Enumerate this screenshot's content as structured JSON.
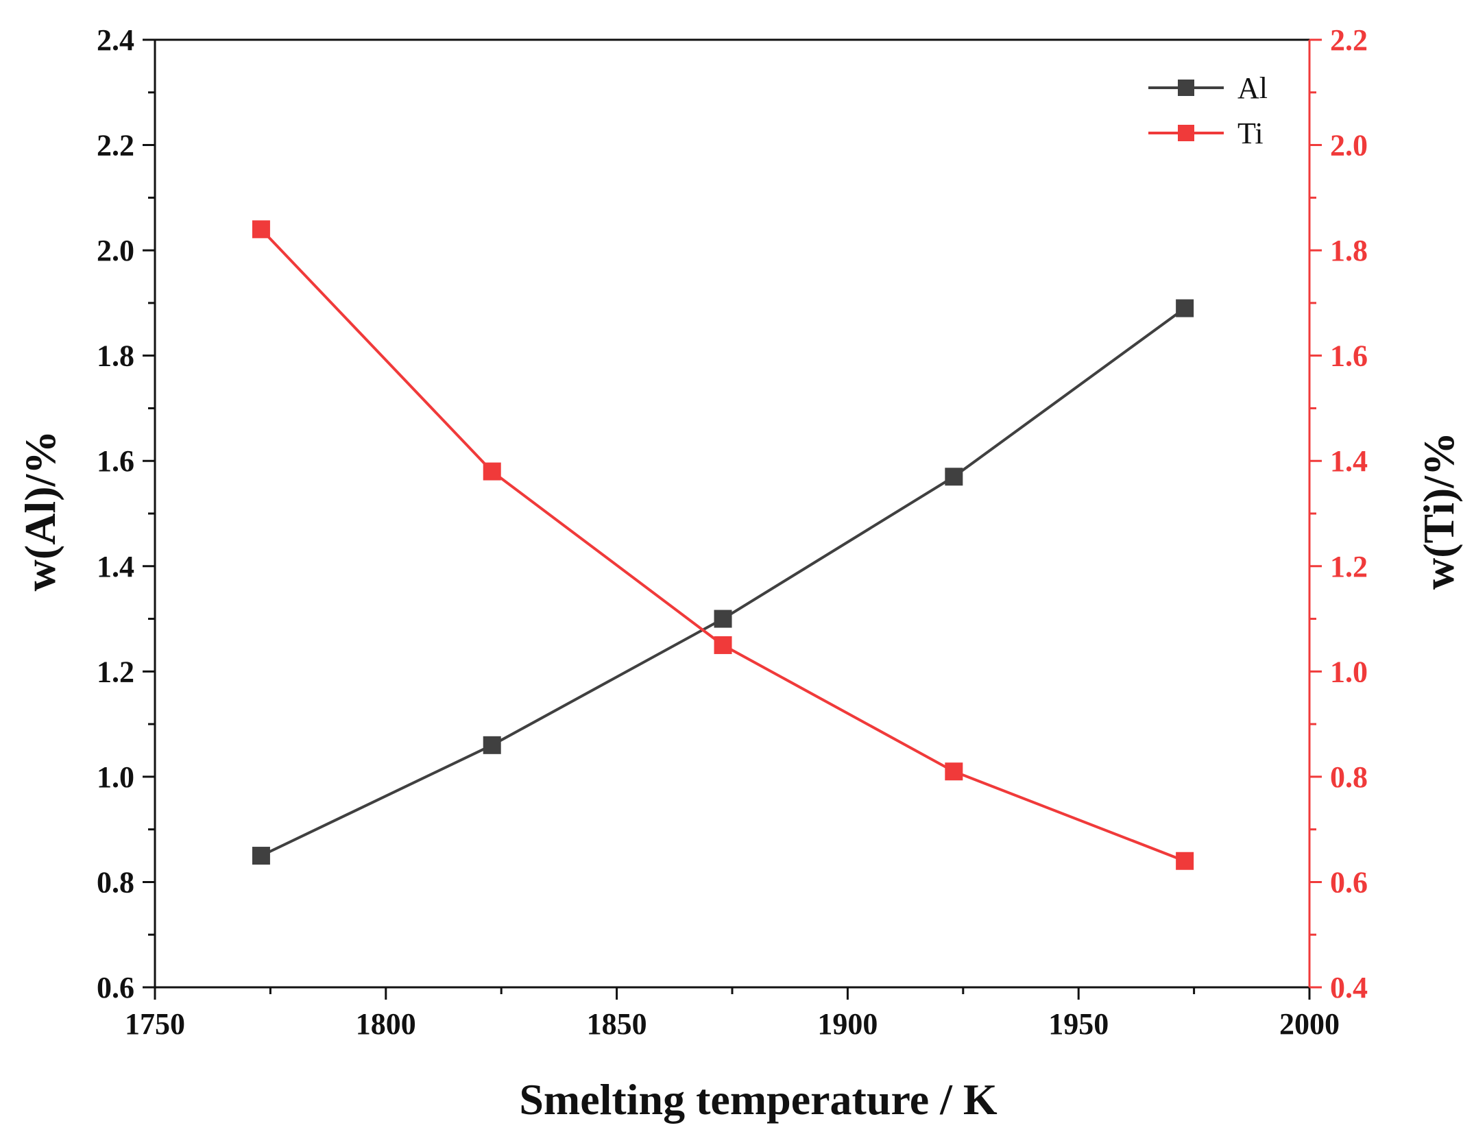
{
  "chart_data": {
    "type": "line",
    "title": "",
    "xlabel": "Smelting temperature / K",
    "ylabel_left": "w(Al)/%",
    "ylabel_right": "w(Ti)/%",
    "xlim": [
      1750,
      2000
    ],
    "ylim_left": [
      0.6,
      2.4
    ],
    "ylim_right": [
      0.4,
      2.2
    ],
    "x_ticks": [
      1750,
      1800,
      1850,
      1900,
      1950,
      2000
    ],
    "y_ticks_left": [
      "0.6",
      "0.8",
      "1.0",
      "1.2",
      "1.4",
      "1.6",
      "1.8",
      "2.0",
      "2.2",
      "2.4"
    ],
    "y_ticks_right": [
      "0.4",
      "0.6",
      "0.8",
      "1.0",
      "1.2",
      "1.4",
      "1.6",
      "1.8",
      "2.0",
      "2.2"
    ],
    "x": [
      1773,
      1823,
      1873,
      1923,
      1973
    ],
    "series": [
      {
        "name": "Al",
        "axis": "left",
        "color": "#404040",
        "values": [
          0.85,
          1.06,
          1.3,
          1.57,
          1.89
        ]
      },
      {
        "name": "Ti",
        "axis": "right",
        "color": "#f03a3a",
        "values": [
          1.84,
          1.38,
          1.05,
          0.81,
          0.64
        ]
      }
    ],
    "legend_position": "top-right",
    "grid": false
  }
}
